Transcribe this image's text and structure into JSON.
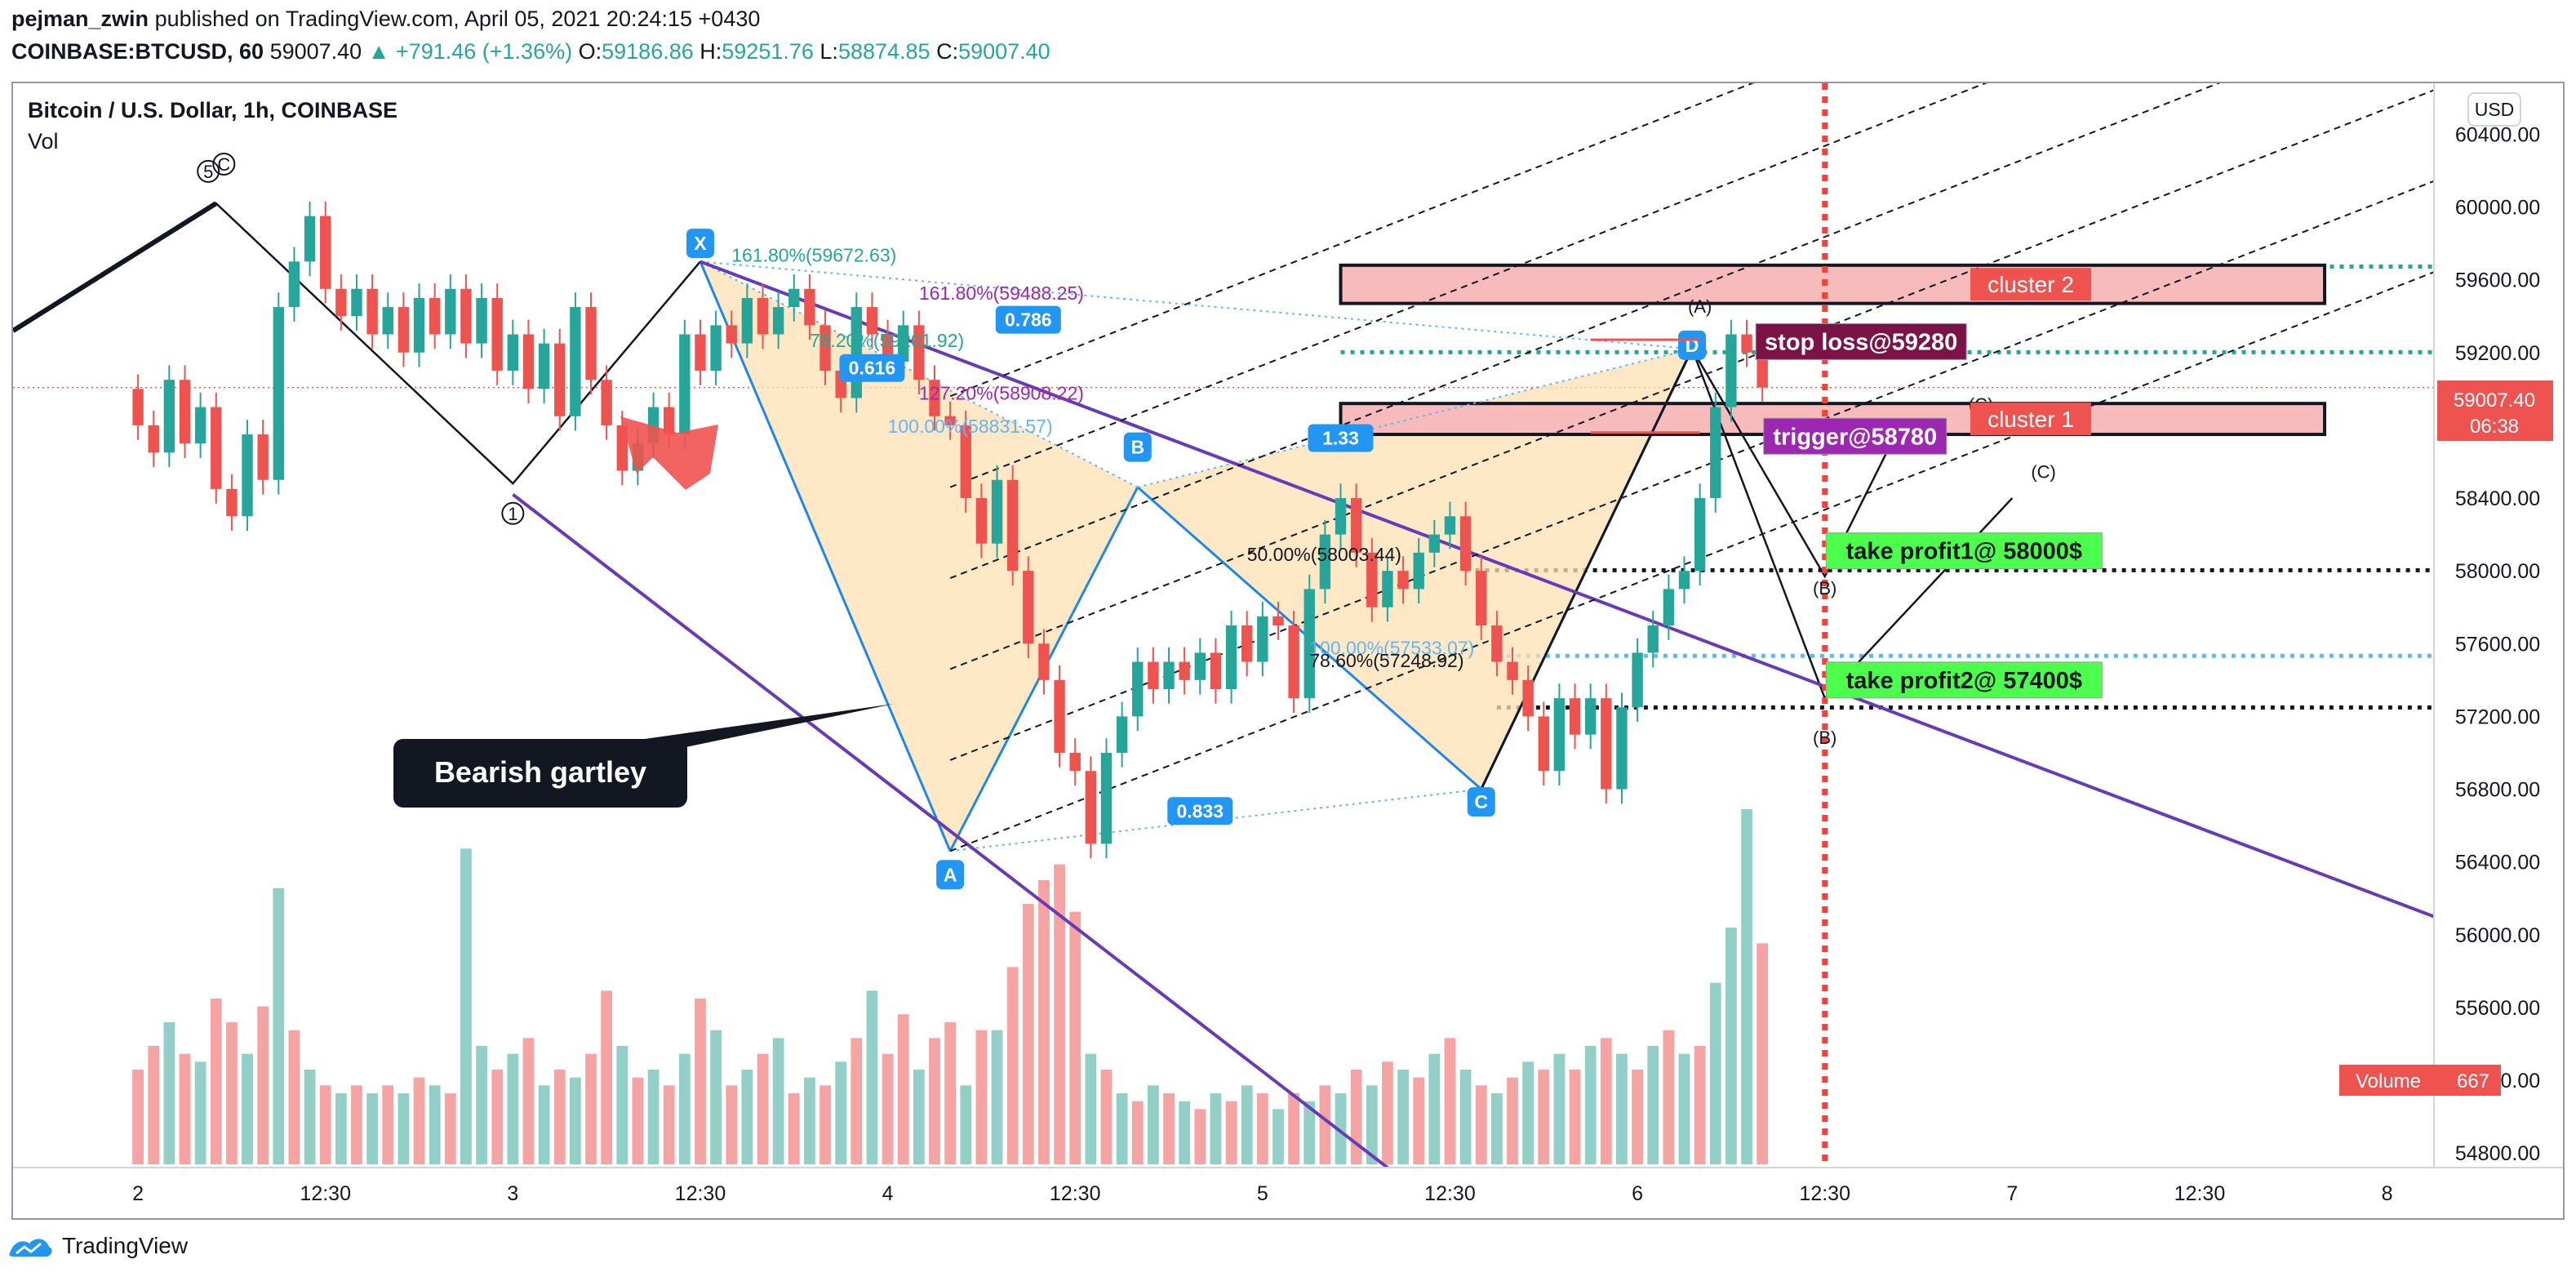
{
  "header": {
    "author": "pejman_zwin",
    "published": "published on TradingView.com, April 05, 2021 20:24:15 +0430",
    "symbol": "COINBASE:BTCUSD, 60",
    "last": "59007.40",
    "change": "▲ +791.46 (+1.36%)",
    "o_label": "O:",
    "o": "59186.86",
    "h_label": "H:",
    "h": "59251.76",
    "l_label": "L:",
    "l": "58874.85",
    "c_label": "C:",
    "c": "59007.40"
  },
  "pane": {
    "title": "Bitcoin / U.S. Dollar, 1h, COINBASE",
    "volume_label": "Vol",
    "currency": "USD",
    "price_badge": "59007.40",
    "countdown": "06:38",
    "volume_badge": "Volume",
    "volume_value": "667"
  },
  "footer": {
    "brand": "TradingView"
  },
  "colors": {
    "up": "#26a69a",
    "down": "#ef5350",
    "vol_up": "#91cfc7",
    "vol_down": "#f5a3a3",
    "purple": "#673ab7",
    "blue": "#2196f3",
    "pattern_fill": "#ffe0b2",
    "cluster_fill": "#f8bbbb",
    "cluster_label": "#ef5350",
    "green_box": "#4cff4c",
    "stop_box": "#7b1346",
    "trigger_box": "#9c27b0",
    "red_dotted": "#f44336"
  },
  "chart_data": {
    "type": "candlestick",
    "title": "Bitcoin / U.S. Dollar, 1h, COINBASE",
    "y_ticks": [
      54800,
      55200,
      55600,
      56000,
      56400,
      56800,
      57200,
      57600,
      58000,
      58400,
      58800,
      59200,
      59600,
      60000,
      60400
    ],
    "y_tick_labels": [
      "54800.00",
      "55200.00",
      "55600.00",
      "56000.00",
      "56400.00",
      "56800.00",
      "57200.00",
      "57600.00",
      "58000.00",
      "58400.00",
      "58800.00",
      "59200.00",
      "59600.00",
      "60000.00",
      "60400.00"
    ],
    "x_ticks": [
      {
        "t": 0,
        "label": "2"
      },
      {
        "t": 12,
        "label": "12:30"
      },
      {
        "t": 24,
        "label": "3"
      },
      {
        "t": 36,
        "label": "12:30"
      },
      {
        "t": 48,
        "label": "4"
      },
      {
        "t": 60,
        "label": "12:30"
      },
      {
        "t": 72,
        "label": "5"
      },
      {
        "t": 84,
        "label": "12:30"
      },
      {
        "t": 96,
        "label": "6"
      },
      {
        "t": 108,
        "label": "12:30"
      },
      {
        "t": 120,
        "label": "7"
      },
      {
        "t": 132,
        "label": "12:30"
      },
      {
        "t": 144,
        "label": "8"
      }
    ],
    "ylim": [
      54720,
      60680
    ],
    "xlim": [
      -8,
      147
    ],
    "candles": [
      [
        59000,
        58800
      ],
      [
        58800,
        58650
      ],
      [
        58650,
        59050
      ],
      [
        59050,
        58700
      ],
      [
        58700,
        58900
      ],
      [
        58900,
        58450
      ],
      [
        58450,
        58300
      ],
      [
        58300,
        58750
      ],
      [
        58750,
        58500
      ],
      [
        58500,
        59450
      ],
      [
        59450,
        59700
      ],
      [
        59700,
        59950
      ],
      [
        59950,
        59550
      ],
      [
        59550,
        59400
      ],
      [
        59400,
        59550
      ],
      [
        59550,
        59300
      ],
      [
        59300,
        59450
      ],
      [
        59450,
        59200
      ],
      [
        59200,
        59500
      ],
      [
        59500,
        59300
      ],
      [
        59300,
        59550
      ],
      [
        59550,
        59250
      ],
      [
        59250,
        59500
      ],
      [
        59500,
        59100
      ],
      [
        59100,
        59300
      ],
      [
        59300,
        59000
      ],
      [
        59000,
        59250
      ],
      [
        59250,
        58850
      ],
      [
        58850,
        59450
      ],
      [
        59450,
        59050
      ],
      [
        59050,
        58800
      ],
      [
        58800,
        58550
      ],
      [
        58550,
        58700
      ],
      [
        58700,
        58900
      ],
      [
        58900,
        58750
      ],
      [
        58750,
        59300
      ],
      [
        59300,
        59100
      ],
      [
        59100,
        59350
      ],
      [
        59350,
        59250
      ],
      [
        59250,
        59500
      ],
      [
        59500,
        59300
      ],
      [
        59300,
        59450
      ],
      [
        59450,
        59550
      ],
      [
        59550,
        59350
      ],
      [
        59350,
        59100
      ],
      [
        59100,
        58950
      ],
      [
        58950,
        59450
      ],
      [
        59450,
        59300
      ],
      [
        59300,
        59150
      ],
      [
        59150,
        59350
      ],
      [
        59350,
        59050
      ],
      [
        59050,
        58850
      ],
      [
        58850,
        58800
      ],
      [
        58800,
        58400
      ],
      [
        58400,
        58150
      ],
      [
        58150,
        58500
      ],
      [
        58500,
        58000
      ],
      [
        58000,
        57600
      ],
      [
        57600,
        57400
      ],
      [
        57400,
        57000
      ],
      [
        57000,
        56900
      ],
      [
        56900,
        56500
      ],
      [
        56500,
        57000
      ],
      [
        57000,
        57200
      ],
      [
        57200,
        57500
      ],
      [
        57500,
        57350
      ],
      [
        57350,
        57500
      ],
      [
        57500,
        57400
      ],
      [
        57400,
        57550
      ],
      [
        57550,
        57350
      ],
      [
        57350,
        57700
      ],
      [
        57700,
        57500
      ],
      [
        57500,
        57750
      ],
      [
        57750,
        57700
      ],
      [
        57700,
        57300
      ],
      [
        57300,
        57900
      ],
      [
        57900,
        58200
      ],
      [
        58200,
        58400
      ],
      [
        58400,
        58100
      ],
      [
        58100,
        57800
      ],
      [
        57800,
        58000
      ],
      [
        58000,
        57900
      ],
      [
        57900,
        58100
      ],
      [
        58100,
        58200
      ],
      [
        58200,
        58300
      ],
      [
        58300,
        58000
      ],
      [
        58000,
        57700
      ],
      [
        57700,
        57500
      ],
      [
        57500,
        57400
      ],
      [
        57400,
        57200
      ],
      [
        57200,
        56900
      ],
      [
        56900,
        57300
      ],
      [
        57300,
        57100
      ],
      [
        57100,
        57300
      ],
      [
        57300,
        56800
      ],
      [
        56800,
        57250
      ],
      [
        57250,
        57550
      ],
      [
        57550,
        57700
      ],
      [
        57700,
        57900
      ],
      [
        57900,
        58000
      ],
      [
        58000,
        58400
      ],
      [
        58400,
        58900
      ],
      [
        58900,
        59300
      ],
      [
        59300,
        59200
      ],
      [
        59186.86,
        59007.4
      ]
    ],
    "volume": [
      [
        0,
        "down",
        0.12
      ],
      [
        1,
        "down",
        0.15
      ],
      [
        2,
        "up",
        0.18
      ],
      [
        3,
        "down",
        0.14
      ],
      [
        4,
        "up",
        0.13
      ],
      [
        5,
        "down",
        0.21
      ],
      [
        6,
        "down",
        0.18
      ],
      [
        7,
        "up",
        0.14
      ],
      [
        8,
        "down",
        0.2
      ],
      [
        9,
        "up",
        0.35
      ],
      [
        10,
        "down",
        0.17
      ],
      [
        11,
        "up",
        0.12
      ],
      [
        12,
        "down",
        0.1
      ],
      [
        13,
        "up",
        0.09
      ],
      [
        14,
        "down",
        0.1
      ],
      [
        15,
        "up",
        0.09
      ],
      [
        16,
        "down",
        0.1
      ],
      [
        17,
        "up",
        0.09
      ],
      [
        18,
        "down",
        0.11
      ],
      [
        19,
        "up",
        0.1
      ],
      [
        20,
        "down",
        0.09
      ],
      [
        21,
        "up",
        0.4
      ],
      [
        22,
        "up",
        0.15
      ],
      [
        23,
        "down",
        0.12
      ],
      [
        24,
        "up",
        0.14
      ],
      [
        25,
        "down",
        0.16
      ],
      [
        26,
        "up",
        0.1
      ],
      [
        27,
        "down",
        0.12
      ],
      [
        28,
        "up",
        0.11
      ],
      [
        29,
        "down",
        0.14
      ],
      [
        30,
        "down",
        0.22
      ],
      [
        31,
        "up",
        0.15
      ],
      [
        32,
        "down",
        0.11
      ],
      [
        33,
        "up",
        0.12
      ],
      [
        34,
        "down",
        0.1
      ],
      [
        35,
        "up",
        0.14
      ],
      [
        36,
        "down",
        0.21
      ],
      [
        37,
        "up",
        0.17
      ],
      [
        38,
        "down",
        0.1
      ],
      [
        39,
        "up",
        0.12
      ],
      [
        40,
        "down",
        0.14
      ],
      [
        41,
        "up",
        0.16
      ],
      [
        42,
        "down",
        0.09
      ],
      [
        43,
        "up",
        0.11
      ],
      [
        44,
        "down",
        0.1
      ],
      [
        45,
        "up",
        0.13
      ],
      [
        46,
        "down",
        0.16
      ],
      [
        47,
        "up",
        0.22
      ],
      [
        48,
        "down",
        0.14
      ],
      [
        49,
        "down",
        0.19
      ],
      [
        50,
        "up",
        0.12
      ],
      [
        51,
        "down",
        0.16
      ],
      [
        52,
        "down",
        0.18
      ],
      [
        53,
        "up",
        0.1
      ],
      [
        54,
        "down",
        0.17
      ],
      [
        55,
        "up",
        0.17
      ],
      [
        56,
        "down",
        0.25
      ],
      [
        57,
        "down",
        0.33
      ],
      [
        58,
        "down",
        0.36
      ],
      [
        59,
        "down",
        0.38
      ],
      [
        60,
        "down",
        0.32
      ],
      [
        61,
        "up",
        0.14
      ],
      [
        62,
        "down",
        0.12
      ],
      [
        63,
        "up",
        0.09
      ],
      [
        64,
        "down",
        0.08
      ],
      [
        65,
        "up",
        0.1
      ],
      [
        66,
        "down",
        0.09
      ],
      [
        67,
        "up",
        0.08
      ],
      [
        68,
        "down",
        0.07
      ],
      [
        69,
        "up",
        0.09
      ],
      [
        70,
        "down",
        0.08
      ],
      [
        71,
        "up",
        0.1
      ],
      [
        72,
        "down",
        0.09
      ],
      [
        73,
        "up",
        0.07
      ],
      [
        74,
        "down",
        0.09
      ],
      [
        75,
        "up",
        0.08
      ],
      [
        76,
        "down",
        0.1
      ],
      [
        77,
        "up",
        0.09
      ],
      [
        78,
        "down",
        0.12
      ],
      [
        79,
        "up",
        0.1
      ],
      [
        80,
        "down",
        0.13
      ],
      [
        81,
        "up",
        0.12
      ],
      [
        82,
        "down",
        0.11
      ],
      [
        83,
        "up",
        0.14
      ],
      [
        84,
        "down",
        0.16
      ],
      [
        85,
        "up",
        0.12
      ],
      [
        86,
        "down",
        0.1
      ],
      [
        87,
        "up",
        0.09
      ],
      [
        88,
        "down",
        0.11
      ],
      [
        89,
        "up",
        0.13
      ],
      [
        90,
        "down",
        0.12
      ],
      [
        91,
        "up",
        0.14
      ],
      [
        92,
        "down",
        0.12
      ],
      [
        93,
        "up",
        0.15
      ],
      [
        94,
        "down",
        0.16
      ],
      [
        95,
        "up",
        0.14
      ],
      [
        96,
        "down",
        0.12
      ],
      [
        97,
        "up",
        0.15
      ],
      [
        98,
        "down",
        0.17
      ],
      [
        99,
        "up",
        0.14
      ],
      [
        100,
        "down",
        0.15
      ],
      [
        101,
        "up",
        0.23
      ],
      [
        102,
        "up",
        0.3
      ],
      [
        103,
        "up",
        0.45
      ],
      [
        104,
        "down",
        0.28
      ]
    ],
    "volume_max_fraction": 0.45,
    "annotations": {
      "fib_texts": [
        {
          "label": "161.80%(59672.63)",
          "t": 38,
          "p": 59700,
          "color": "#26a69a"
        },
        {
          "label": "161.80%(59488.25)",
          "t": 50,
          "p": 59490,
          "color": "#9c27b0"
        },
        {
          "label": "78.20%(59201.92)",
          "t": 43,
          "p": 59230,
          "color": "#26a69a"
        },
        {
          "label": "127.20%(58908.22)",
          "t": 50,
          "p": 58940,
          "color": "#9c27b0"
        },
        {
          "label": "100.00%(58831.57)",
          "t": 48,
          "p": 58760,
          "color": "#64b5f6"
        },
        {
          "label": "50.00%(58003.44)",
          "t": 71,
          "p": 58055,
          "color": "#131722"
        },
        {
          "label": "100.00%(57533.07)",
          "t": 75,
          "p": 57540,
          "color": "#64b5f6"
        },
        {
          "label": "78.60%(57248.92)",
          "t": 75,
          "p": 57470,
          "color": "#131722"
        }
      ],
      "ratio_badges": [
        {
          "label": "0.786",
          "t": 57,
          "p": 59380
        },
        {
          "label": "0.616",
          "t": 47,
          "p": 59115
        },
        {
          "label": "1.33",
          "t": 77,
          "p": 58730
        },
        {
          "label": "0.833",
          "t": 68,
          "p": 56680
        }
      ],
      "point_badges": [
        {
          "label": "X",
          "t": 36,
          "p": 59800
        },
        {
          "label": "A",
          "t": 52,
          "p": 56330
        },
        {
          "label": "B",
          "t": 64,
          "p": 58680
        },
        {
          "label": "C",
          "t": 86,
          "p": 56730
        },
        {
          "label": "D",
          "t": 99.5,
          "p": 59240
        }
      ],
      "wave_labels": [
        {
          "label": "5",
          "t": 4.5,
          "p": 60160
        },
        {
          "label": "C",
          "t": 5.5,
          "p": 60200
        },
        {
          "label": "1",
          "t": 24,
          "p": 58280
        },
        {
          "label": "(A)",
          "t": 100,
          "p": 59420
        },
        {
          "label": "(C)",
          "t": 118,
          "p": 58880
        },
        {
          "label": "(B)",
          "t": 108,
          "p": 57870
        },
        {
          "label": "(C)",
          "t": 122,
          "p": 58510
        },
        {
          "label": "(B)",
          "t": 108,
          "p": 57050
        }
      ],
      "clusters": [
        {
          "label": "cluster 2",
          "p_top": 59680,
          "p_bottom": 59470
        },
        {
          "label": "cluster 1",
          "p_top": 58920,
          "p_bottom": 58750
        }
      ],
      "boxes": [
        {
          "label": "stop loss@59280",
          "t": 104,
          "p": 59260,
          "kind": "stop"
        },
        {
          "label": "trigger@58780",
          "t": 104.5,
          "p": 58740,
          "kind": "trigger"
        },
        {
          "label": "take profit1@ 58000$",
          "t": 108.5,
          "p": 58110,
          "kind": "tp"
        },
        {
          "label": "take profit2@ 57400$",
          "t": 108.5,
          "p": 57400,
          "kind": "tp"
        }
      ],
      "callout": "Bearish gartley",
      "horizontal_levels": [
        {
          "p": 59672.63,
          "color": "#26a69a",
          "from": 77
        },
        {
          "p": 59201.92,
          "color": "#26a69a",
          "from": 77
        },
        {
          "p": 58003.44,
          "color": "#131722",
          "from": 85
        },
        {
          "p": 57533.07,
          "color": "#64b5f6",
          "from": 87
        },
        {
          "p": 57248.92,
          "color": "#131722",
          "from": 87
        }
      ],
      "vertical_marker_t": 108
    }
  }
}
